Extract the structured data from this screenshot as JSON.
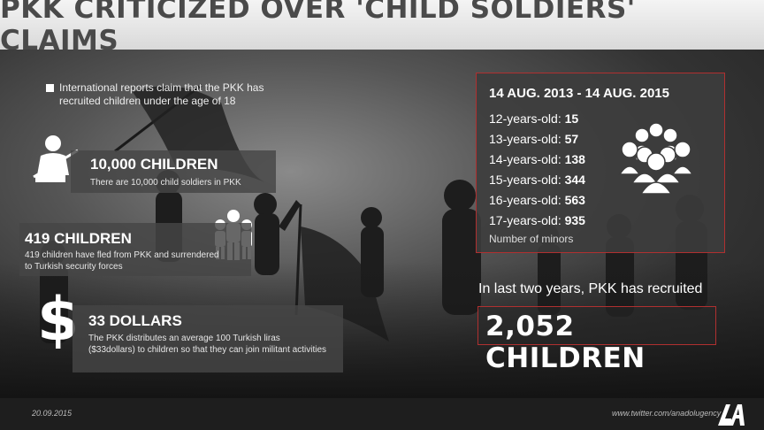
{
  "title": "PKK CRITICIZED OVER 'CHILD SOLDIERS' CLAIMS",
  "intro": "International reports claim that the PKK has recruited children under the age of 18",
  "facts": [
    {
      "headline": "10,000 CHILDREN",
      "description": "There are 10,000 child soldiers in PKK",
      "icon": "soldier-icon"
    },
    {
      "headline": "419 CHILDREN",
      "description": "419 children have fled from PKK and surrendered to Turkish security forces",
      "icon": "children-group-icon"
    },
    {
      "headline": "33 DOLLARS",
      "description": "The PKK distributes an average 100 Turkish liras ($33dollars) to children so that they can join militant activities",
      "icon": "dollar-icon",
      "symbol": "$"
    }
  ],
  "stats": {
    "range": "14 AUG. 2013 - 14 AUG. 2015",
    "rows": [
      {
        "label": "12-years-old: ",
        "value": "15"
      },
      {
        "label": "13-years-old: ",
        "value": "57"
      },
      {
        "label": "14-years-old: ",
        "value": "138"
      },
      {
        "label": "15-years-old: ",
        "value": "344"
      },
      {
        "label": "16-years-old: ",
        "value": "563"
      },
      {
        "label": "17-years-old: ",
        "value": "935"
      }
    ],
    "note": "Number of minors",
    "icon": "crowd-icon"
  },
  "recruited_text": "In last two years, PKK has recruited",
  "total": "2,052 CHILDREN",
  "footer": {
    "date": "20.09.2015",
    "twitter": "www.twitter.com/anadolugency",
    "logo": "AA"
  },
  "colors": {
    "accent_border": "#b03030",
    "title": "#4a4a4a"
  }
}
